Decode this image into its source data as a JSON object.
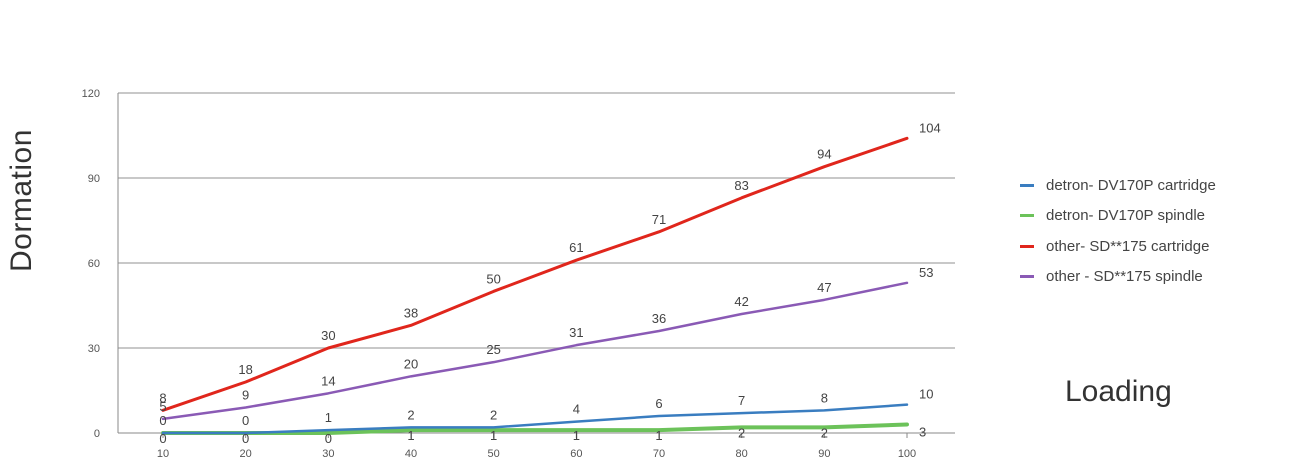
{
  "chart_data": {
    "type": "line",
    "xlabel": "Loading",
    "ylabel": "Dormation",
    "x": [
      10,
      20,
      30,
      40,
      50,
      60,
      70,
      80,
      90,
      100
    ],
    "ylim": [
      0,
      120
    ],
    "yticks": [
      0,
      30,
      60,
      90,
      120
    ],
    "grid": true,
    "legend_position": "right",
    "series": [
      {
        "name": "detron- DV170P cartridge",
        "color": "#3a7dc0",
        "values": [
          0,
          0,
          1,
          2,
          2,
          4,
          6,
          7,
          8,
          10
        ]
      },
      {
        "name": "detron- DV170P spindle",
        "color": "#6cc25a",
        "values": [
          0,
          0,
          0,
          1,
          1,
          1,
          1,
          2,
          2,
          3
        ]
      },
      {
        "name": "other- SD**175 cartridge",
        "color": "#e0261c",
        "values": [
          8,
          18,
          30,
          38,
          50,
          61,
          71,
          83,
          94,
          104
        ]
      },
      {
        "name": "other - SD**175 spindle",
        "color": "#8a5ab5",
        "values": [
          5,
          9,
          14,
          20,
          25,
          31,
          36,
          42,
          47,
          53
        ]
      }
    ]
  }
}
